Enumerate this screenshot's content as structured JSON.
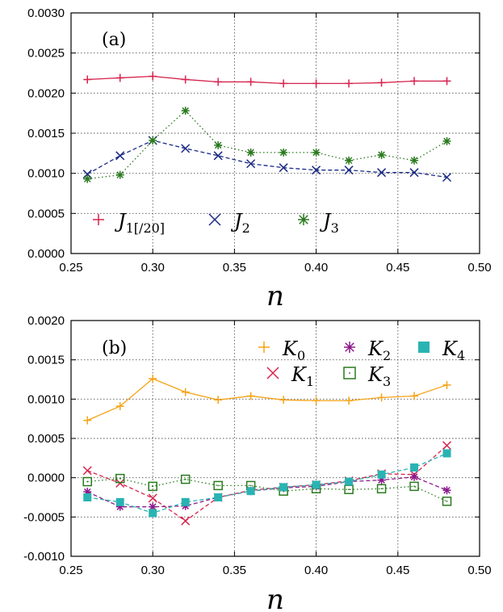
{
  "colors": {
    "J1": "#d6244e",
    "J2": "#1b2a84",
    "J3": "#2a7a1f",
    "K0": "#f5a316",
    "K1": "#d6244e",
    "K2": "#8c1a8c",
    "K3": "#2a7a1f",
    "K4": "#2ab3b3"
  },
  "chart_data": [
    {
      "type": "line",
      "panel_label": "(a)",
      "xlabel": "n",
      "ylabel": "",
      "xlim": [
        0.25,
        0.5
      ],
      "ylim": [
        0.0,
        0.003
      ],
      "x_ticks": [
        "0.25",
        "0.30",
        "0.35",
        "0.40",
        "0.45",
        "0.50"
      ],
      "y_ticks": [
        "0.0000",
        "0.0005",
        "0.0010",
        "0.0015",
        "0.0020",
        "0.0025",
        "0.0030"
      ],
      "grid": true,
      "legend_position": "bottom-left",
      "x": [
        0.26,
        0.28,
        0.3,
        0.32,
        0.34,
        0.36,
        0.38,
        0.4,
        0.42,
        0.44,
        0.46,
        0.48
      ],
      "series": [
        {
          "key": "J1",
          "name": "J",
          "sub": "1[/20]",
          "marker": "plus",
          "dash": "solid",
          "values": [
            0.00217,
            0.00219,
            0.00221,
            0.00217,
            0.00214,
            0.00214,
            0.00212,
            0.00212,
            0.00212,
            0.00213,
            0.00215,
            0.00215
          ]
        },
        {
          "key": "J2",
          "name": "J",
          "sub": "2",
          "marker": "cross",
          "dash": "dashed",
          "values": [
            0.00099,
            0.00122,
            0.00141,
            0.00131,
            0.00122,
            0.00112,
            0.00107,
            0.00104,
            0.00104,
            0.00101,
            0.00101,
            0.00095
          ]
        },
        {
          "key": "J3",
          "name": "J",
          "sub": "3",
          "marker": "asterisk",
          "dash": "dotted",
          "values": [
            0.00093,
            0.00098,
            0.00141,
            0.00178,
            0.00135,
            0.00126,
            0.00126,
            0.00126,
            0.00116,
            0.00123,
            0.00116,
            0.0014
          ]
        }
      ]
    },
    {
      "type": "line",
      "panel_label": "(b)",
      "xlabel": "n",
      "ylabel": "",
      "xlim": [
        0.25,
        0.5
      ],
      "ylim": [
        -0.001,
        0.002
      ],
      "x_ticks": [
        "0.25",
        "0.30",
        "0.35",
        "0.40",
        "0.45",
        "0.50"
      ],
      "y_ticks": [
        "-0.0010",
        "-0.0005",
        "0.0000",
        "0.0005",
        "0.0010",
        "0.0015",
        "0.0020"
      ],
      "grid": true,
      "legend_position": "top-right",
      "x": [
        0.26,
        0.28,
        0.3,
        0.32,
        0.34,
        0.36,
        0.38,
        0.4,
        0.42,
        0.44,
        0.46,
        0.48
      ],
      "series": [
        {
          "key": "K0",
          "name": "K",
          "sub": "0",
          "marker": "plus",
          "dash": "solid",
          "values": [
            0.00073,
            0.00091,
            0.00126,
            0.00109,
            0.00099,
            0.00104,
            0.00099,
            0.00098,
            0.00098,
            0.00102,
            0.00104,
            0.00118
          ]
        },
        {
          "key": "K1",
          "name": "K",
          "sub": "1",
          "marker": "cross",
          "dash": "dashed",
          "values": [
            9e-05,
            -7e-05,
            -0.00026,
            -0.00055,
            -0.00025,
            -0.00016,
            -0.00012,
            -9e-05,
            -4e-05,
            5e-05,
            4e-05,
            0.00041
          ]
        },
        {
          "key": "K2",
          "name": "K",
          "sub": "2",
          "marker": "asterisk",
          "dash": "dashed",
          "values": [
            -0.00018,
            -0.00037,
            -0.00037,
            -0.00036,
            -0.00025,
            -0.00017,
            -0.00013,
            -0.00011,
            -5e-05,
            -3e-05,
            1e-05,
            -0.00016
          ]
        },
        {
          "key": "K3",
          "name": "K",
          "sub": "3",
          "marker": "opensquare",
          "dash": "dotted",
          "values": [
            -5e-05,
            -1e-05,
            -0.00011,
            -2e-05,
            -0.0001,
            -0.0001,
            -0.00017,
            -0.00014,
            -0.00015,
            -0.00014,
            -0.00011,
            -0.0003
          ]
        },
        {
          "key": "K4",
          "name": "K",
          "sub": "4",
          "marker": "filledsquare",
          "dash": "dashed",
          "values": [
            -0.00025,
            -0.00031,
            -0.00045,
            -0.00031,
            -0.00025,
            -0.00017,
            -0.00012,
            -9e-05,
            -5e-05,
            4e-05,
            0.00013,
            0.00031
          ]
        }
      ]
    }
  ]
}
